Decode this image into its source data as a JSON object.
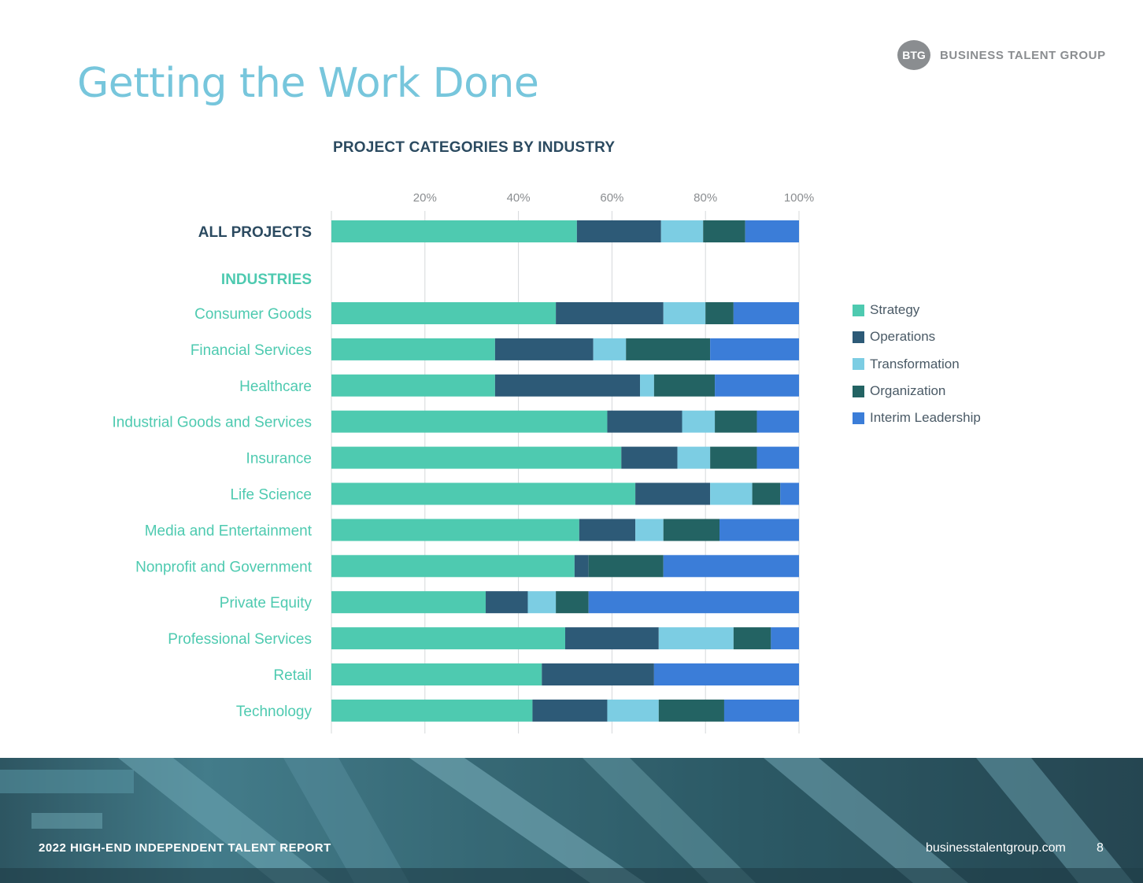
{
  "title": "Getting the Work Done",
  "logo": {
    "mark": "BTG",
    "name": "BUSINESS TALENT GROUP"
  },
  "chart_data": {
    "type": "bar",
    "orientation": "horizontal",
    "stacked": true,
    "title": "PROJECT CATEGORIES BY INDUSTRY",
    "xlim": [
      0,
      100
    ],
    "x_ticks": [
      20,
      40,
      60,
      80,
      100
    ],
    "x_tick_labels": [
      "20%",
      "40%",
      "60%",
      "80%",
      "100%"
    ],
    "grid": "vertical",
    "legend_position": "right",
    "summary": {
      "label": "ALL PROJECTS",
      "values": {
        "Strategy": 52.5,
        "Operations": 18,
        "Transformation": 9,
        "Organization": 9,
        "Interim Leadership": 11.5
      }
    },
    "section_label": "INDUSTRIES",
    "categories": [
      "Consumer Goods",
      "Financial Services",
      "Healthcare",
      "Industrial Goods and Services",
      "Insurance",
      "Life Science",
      "Media and Entertainment",
      "Nonprofit and Government",
      "Private Equity",
      "Professional Services",
      "Retail",
      "Technology"
    ],
    "series": [
      {
        "name": "Strategy",
        "color": "#4ecab0",
        "values": [
          48,
          35,
          35,
          59,
          62,
          65,
          53,
          52,
          33,
          50,
          45,
          43
        ]
      },
      {
        "name": "Operations",
        "color": "#2d5a77",
        "values": [
          23,
          21,
          31,
          16,
          12,
          16,
          12,
          3,
          9,
          20,
          24,
          16
        ]
      },
      {
        "name": "Transformation",
        "color": "#7ccde3",
        "values": [
          9,
          7,
          3,
          7,
          7,
          9,
          6,
          0,
          6,
          16,
          0,
          11
        ]
      },
      {
        "name": "Organization",
        "color": "#236363",
        "values": [
          6,
          18,
          13,
          9,
          10,
          6,
          12,
          16,
          7,
          8,
          0,
          14
        ]
      },
      {
        "name": "Interim Leadership",
        "color": "#3b7dd8",
        "values": [
          14,
          19,
          18,
          9,
          9,
          4,
          17,
          29,
          45,
          6,
          31,
          16
        ]
      }
    ]
  },
  "footer": {
    "report": "2022 HIGH-END INDEPENDENT TALENT REPORT",
    "url": "businesstalentgroup.com",
    "page": "8"
  }
}
